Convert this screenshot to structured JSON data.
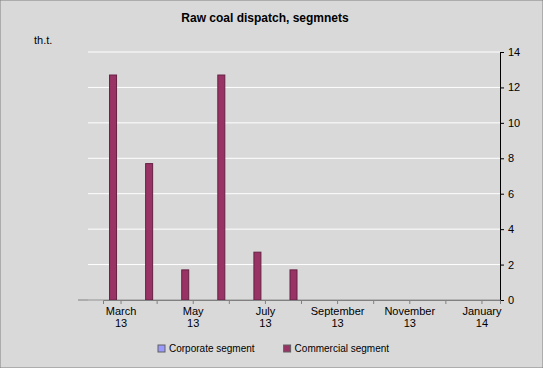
{
  "chart_data": {
    "type": "bar",
    "title": "Raw coal dispatch, segmnets",
    "y_label": "th.t.",
    "categories": [
      "March 13",
      null,
      "May 13",
      null,
      "July 13",
      null,
      "September 13",
      null,
      "November 13",
      null,
      "January 14"
    ],
    "series": [
      {
        "name": "Corporate segment",
        "color": "#9999ff",
        "values": [
          0,
          0,
          0,
          0,
          0,
          0,
          null,
          null,
          null,
          null,
          null
        ]
      },
      {
        "name": "Commercial segment",
        "color": "#993366",
        "values": [
          12.7,
          7.7,
          1.7,
          12.7,
          2.7,
          1.7,
          null,
          null,
          null,
          null,
          null
        ]
      }
    ],
    "ylim": [
      0,
      14
    ],
    "yticks": [
      0,
      2,
      4,
      6,
      8,
      10,
      12,
      14
    ],
    "grid": true,
    "legend": "bottom"
  }
}
